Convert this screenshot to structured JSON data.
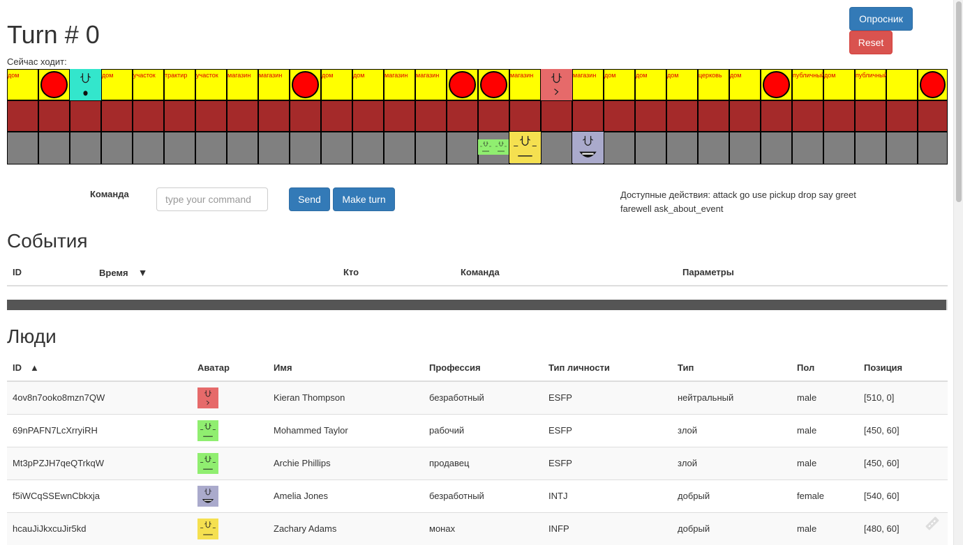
{
  "header": {
    "turn_title": "Turn # 0",
    "now_moving_label": "Сейчас ходит:",
    "opros_button": "Опросник",
    "reset_button": "Reset"
  },
  "board": {
    "road_labels": [
      "дом",
      "",
      "",
      "дом",
      "участок",
      "трактир",
      "участок",
      "магазин",
      "магазин",
      "",
      "дом",
      "дом",
      "магазин",
      "магазин",
      "",
      "",
      "магазин",
      "",
      "магазин",
      "дом",
      "дом",
      "дом",
      "церковь",
      "дом",
      "",
      "публичный",
      "дом",
      "публичный",
      ""
    ]
  },
  "command": {
    "label": "Команда",
    "placeholder": "type your command",
    "send_button": "Send",
    "make_turn_button": "Make turn",
    "available_actions": "Доступные действия: attack go use pickup drop say greet farewell ask_about_event"
  },
  "events": {
    "heading": "События",
    "columns": {
      "id": "ID",
      "time": "Время",
      "sort_arrow": "▼",
      "who": "Кто",
      "command": "Команда",
      "params": "Параметры"
    }
  },
  "people": {
    "heading": "Люди",
    "columns": {
      "id": "ID",
      "sort_arrow": "▲",
      "avatar": "Аватар",
      "name": "Имя",
      "profession": "Профессия",
      "personality": "Тип личности",
      "type": "Тип",
      "gender": "Пол",
      "position": "Позиция"
    },
    "rows": [
      {
        "id": "4ov8n7ooko8mzn7QW",
        "avatar_color": "#e66a6a",
        "name": "Kieran Thompson",
        "profession": "безработный",
        "personality": "ESFP",
        "type": "нейтральный",
        "gender": "male",
        "position": "[510, 0]"
      },
      {
        "id": "69nPAFN7LcXrryiRH",
        "avatar_color": "#90ee70",
        "name": "Mohammed Taylor",
        "profession": "рабочий",
        "personality": "ESFP",
        "type": "злой",
        "gender": "male",
        "position": "[450, 60]"
      },
      {
        "id": "Mt3pPZJH7qeQTrkqW",
        "avatar_color": "#90ee70",
        "name": "Archie Phillips",
        "profession": "продавец",
        "personality": "ESFP",
        "type": "злой",
        "gender": "male",
        "position": "[450, 60]"
      },
      {
        "id": "f5iWCqSSEwnCbkxja",
        "avatar_color": "#aaaacc",
        "name": "Amelia Jones",
        "profession": "безработный",
        "personality": "INTJ",
        "type": "добрый",
        "gender": "female",
        "position": "[540, 60]"
      },
      {
        "id": "hcauJiJkxcuJir5kd",
        "avatar_color": "#f5e050",
        "name": "Zachary Adams",
        "profession": "монах",
        "personality": "INFP",
        "type": "добрый",
        "gender": "male",
        "position": "[480, 60]"
      }
    ]
  },
  "colors": {
    "primary": "#337ab7",
    "danger": "#d9534f",
    "road": "#ffff00",
    "wall": "#a52a2a",
    "ground": "#808080",
    "circle": "#ff0000",
    "road_label": "#e00000"
  }
}
